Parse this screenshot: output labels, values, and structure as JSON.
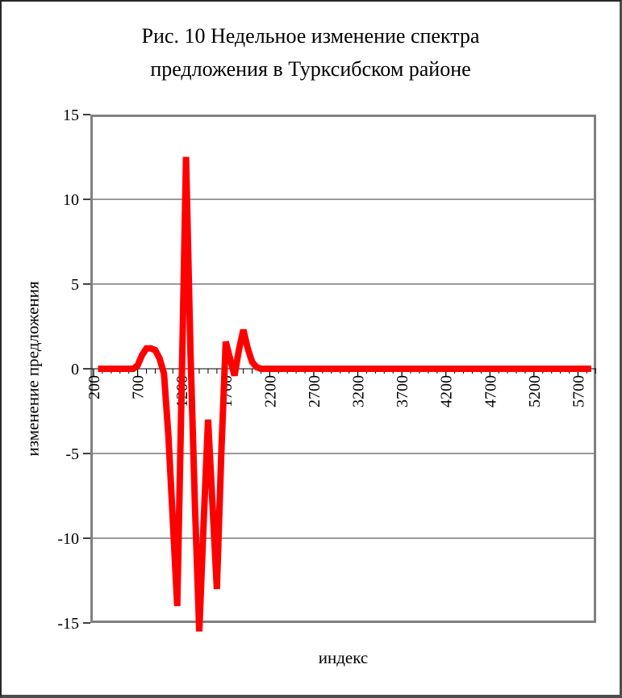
{
  "figure": {
    "title_line1": "Рис. 10 Недельное изменение спектра",
    "title_line2": "предложения в Турксибском районе"
  },
  "chart_data": {
    "type": "line",
    "title": "Рис. 10 Недельное изменение спектра предложения в Турксибском районе",
    "xlabel": "индекс",
    "ylabel": "изменение предложения",
    "xlim": [
      200,
      5900
    ],
    "ylim": [
      -15,
      15
    ],
    "grid": true,
    "legend_position": "none",
    "x_axis_crosses_at": 0,
    "x_tick_label_rotation": -90,
    "x_major_tick_step": 500,
    "x_minor_tick_step": 100,
    "x_tick_labels": [
      200,
      700,
      1200,
      1700,
      2200,
      2700,
      3200,
      3700,
      4200,
      4700,
      5200,
      5700
    ],
    "y_tick_labels": [
      "15",
      "10",
      "5",
      "0",
      "-5",
      "-10",
      "-15"
    ],
    "y_tick_values": [
      15,
      10,
      5,
      0,
      -5,
      -10,
      -15
    ],
    "series": [
      {
        "name": "series-1",
        "color": "#FF0000",
        "stroke_width": 8,
        "points": [
          [
            250,
            0
          ],
          [
            300,
            0
          ],
          [
            350,
            0
          ],
          [
            400,
            0
          ],
          [
            450,
            0
          ],
          [
            500,
            0
          ],
          [
            550,
            0
          ],
          [
            600,
            0
          ],
          [
            650,
            0
          ],
          [
            700,
            0.2
          ],
          [
            750,
            0.8
          ],
          [
            800,
            1.2
          ],
          [
            850,
            1.2
          ],
          [
            900,
            1.1
          ],
          [
            950,
            0.6
          ],
          [
            1000,
            -0.3
          ],
          [
            1050,
            -4
          ],
          [
            1100,
            -9
          ],
          [
            1150,
            -14
          ],
          [
            1200,
            -1
          ],
          [
            1250,
            12.5
          ],
          [
            1300,
            1
          ],
          [
            1350,
            -8
          ],
          [
            1400,
            -15.5
          ],
          [
            1450,
            -9
          ],
          [
            1500,
            -3
          ],
          [
            1550,
            -8
          ],
          [
            1600,
            -13
          ],
          [
            1650,
            -5
          ],
          [
            1700,
            1.6
          ],
          [
            1750,
            0.6
          ],
          [
            1800,
            -0.4
          ],
          [
            1850,
            1.1
          ],
          [
            1900,
            2.3
          ],
          [
            1950,
            1.2
          ],
          [
            2000,
            0.4
          ],
          [
            2050,
            0.1
          ],
          [
            2100,
            0
          ],
          [
            2200,
            0
          ],
          [
            2400,
            0
          ],
          [
            2600,
            0
          ],
          [
            2800,
            0
          ],
          [
            3000,
            0
          ],
          [
            3200,
            0
          ],
          [
            3400,
            0
          ],
          [
            3600,
            0
          ],
          [
            3800,
            0
          ],
          [
            4000,
            0
          ],
          [
            4200,
            0
          ],
          [
            4400,
            0
          ],
          [
            4600,
            0
          ],
          [
            4800,
            0
          ],
          [
            5000,
            0
          ],
          [
            5200,
            0
          ],
          [
            5400,
            0
          ],
          [
            5600,
            0
          ],
          [
            5850,
            0
          ]
        ]
      }
    ]
  },
  "style": {
    "line_color": "#FF0000",
    "plot_border_color": "#808080",
    "grid_color": "#333333",
    "axis_color": "#000000",
    "text_color": "#000000",
    "background_color": "#FFFFFF"
  }
}
